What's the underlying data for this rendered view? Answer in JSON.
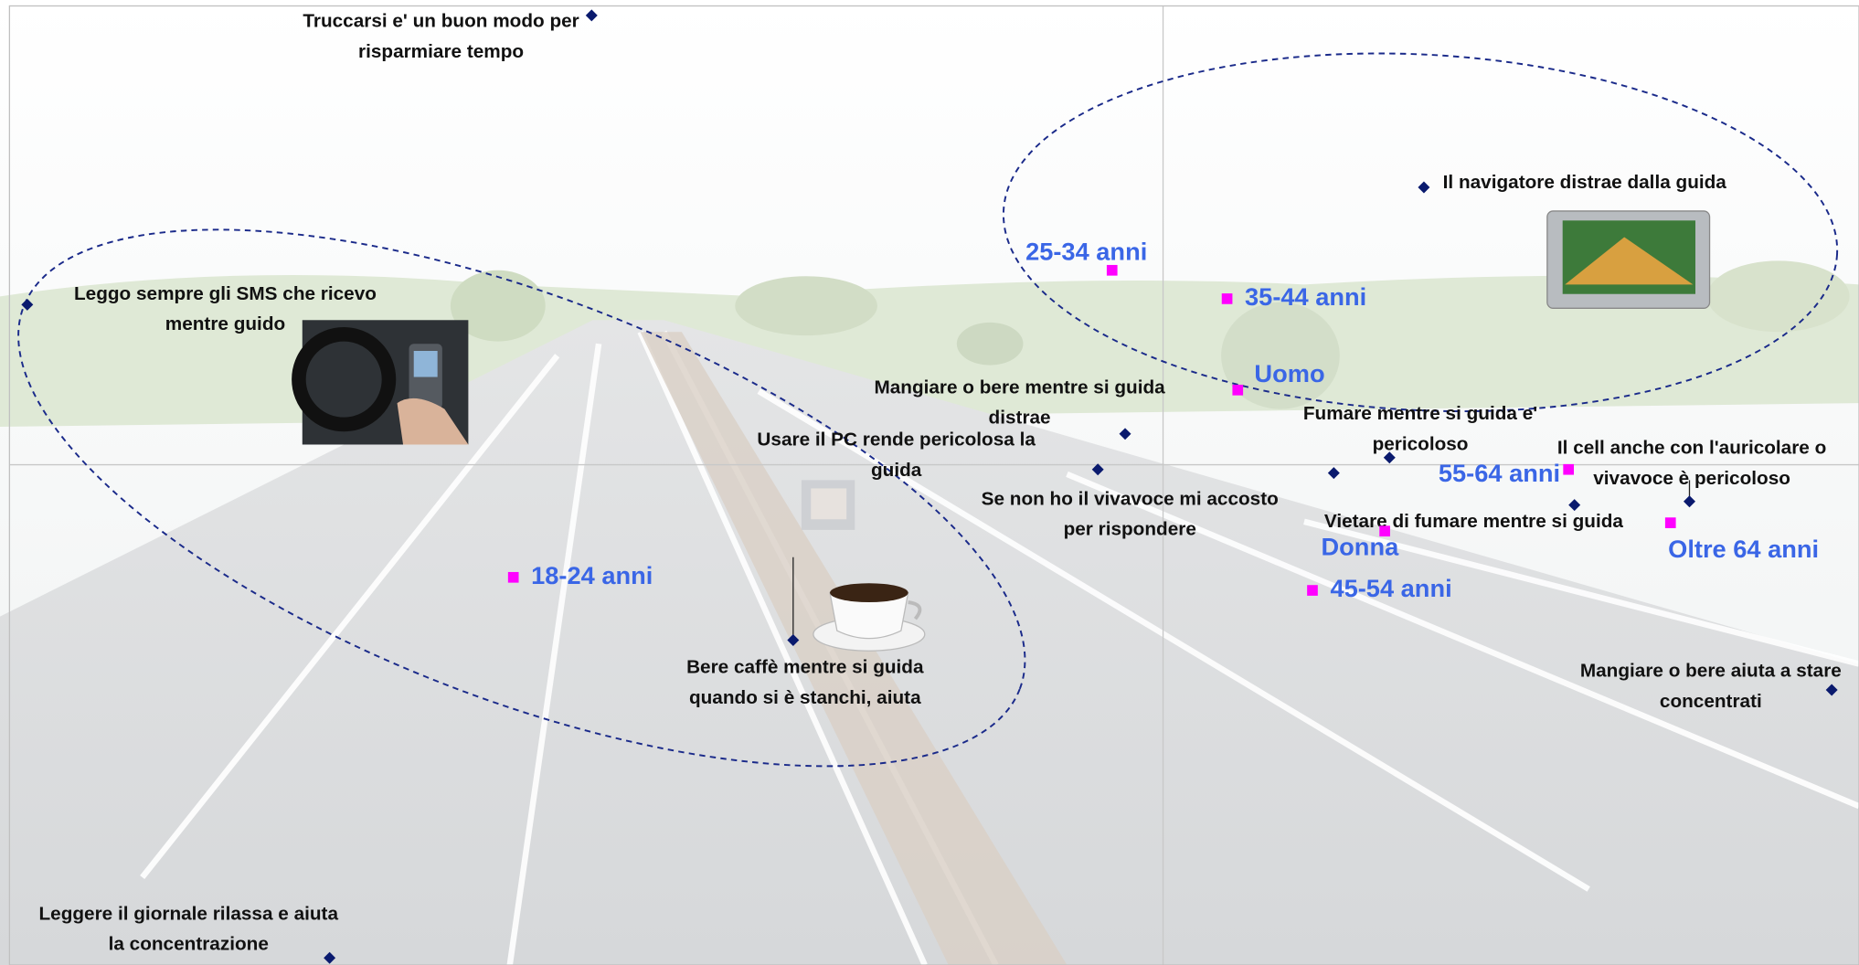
{
  "chart_data": {
    "type": "scatter",
    "xlim": [
      -9.73,
      5.87
    ],
    "ylim": [
      -4.22,
      3.87
    ],
    "series": [
      {
        "marker": "diamond",
        "color": "#0a1a6e",
        "label_color": "#111111",
        "x": [
          -4.82,
          -9.58,
          2.2,
          -0.32,
          -0.55,
          1.44,
          1.91,
          4.44,
          3.47,
          -3.12,
          5.64,
          -7.03
        ],
        "y": [
          3.79,
          1.35,
          2.34,
          0.26,
          -0.04,
          -0.07,
          0.06,
          -0.31,
          -0.34,
          -1.48,
          -1.9,
          -4.16
        ],
        "labels": [
          [
            "Truccarsi e' un buon modo per",
            "risparmiare tempo"
          ],
          [
            "Leggo sempre gli SMS che ricevo",
            "mentre guido"
          ],
          [
            "Il navigatore distrae dalla guida"
          ],
          [
            "Mangiare o bere mentre si guida",
            "distrae"
          ],
          [
            "Usare il PC rende pericolosa la",
            "guida"
          ],
          [
            "Se non ho il vivavoce mi accosto",
            "per rispondere"
          ],
          [
            "Fumare mentre si guida e'",
            "pericoloso"
          ],
          [
            "Il cell anche con l'auricolare o",
            "vivavoce è pericoloso"
          ],
          [
            "Vietare di fumare mentre si guida"
          ],
          [
            "Bere caffè mentre si guida",
            "quando si è stanchi, aiuta"
          ],
          [
            "Mangiare o bere aiuta a stare",
            "concentrati"
          ],
          [
            "Leggere il giornale rilassa e aiuta",
            "la concentrazione"
          ]
        ]
      },
      {
        "marker": "square",
        "color": "#ff00ff",
        "label_color": "#3a66e6",
        "x": [
          -5.48,
          -0.43,
          0.54,
          0.63,
          3.42,
          1.87,
          1.26,
          4.28
        ],
        "y": [
          -0.95,
          1.64,
          1.4,
          0.63,
          -0.04,
          -0.56,
          -1.06,
          -0.49
        ],
        "labels": [
          [
            "18-24 anni"
          ],
          [
            "25-34 anni"
          ],
          [
            "35-44 anni"
          ],
          [
            "Uomo"
          ],
          [
            "55-64 anni"
          ],
          [
            "Donna"
          ],
          [
            "45-54 anni"
          ],
          [
            "Oltre 64 anni"
          ]
        ]
      }
    ]
  }
}
